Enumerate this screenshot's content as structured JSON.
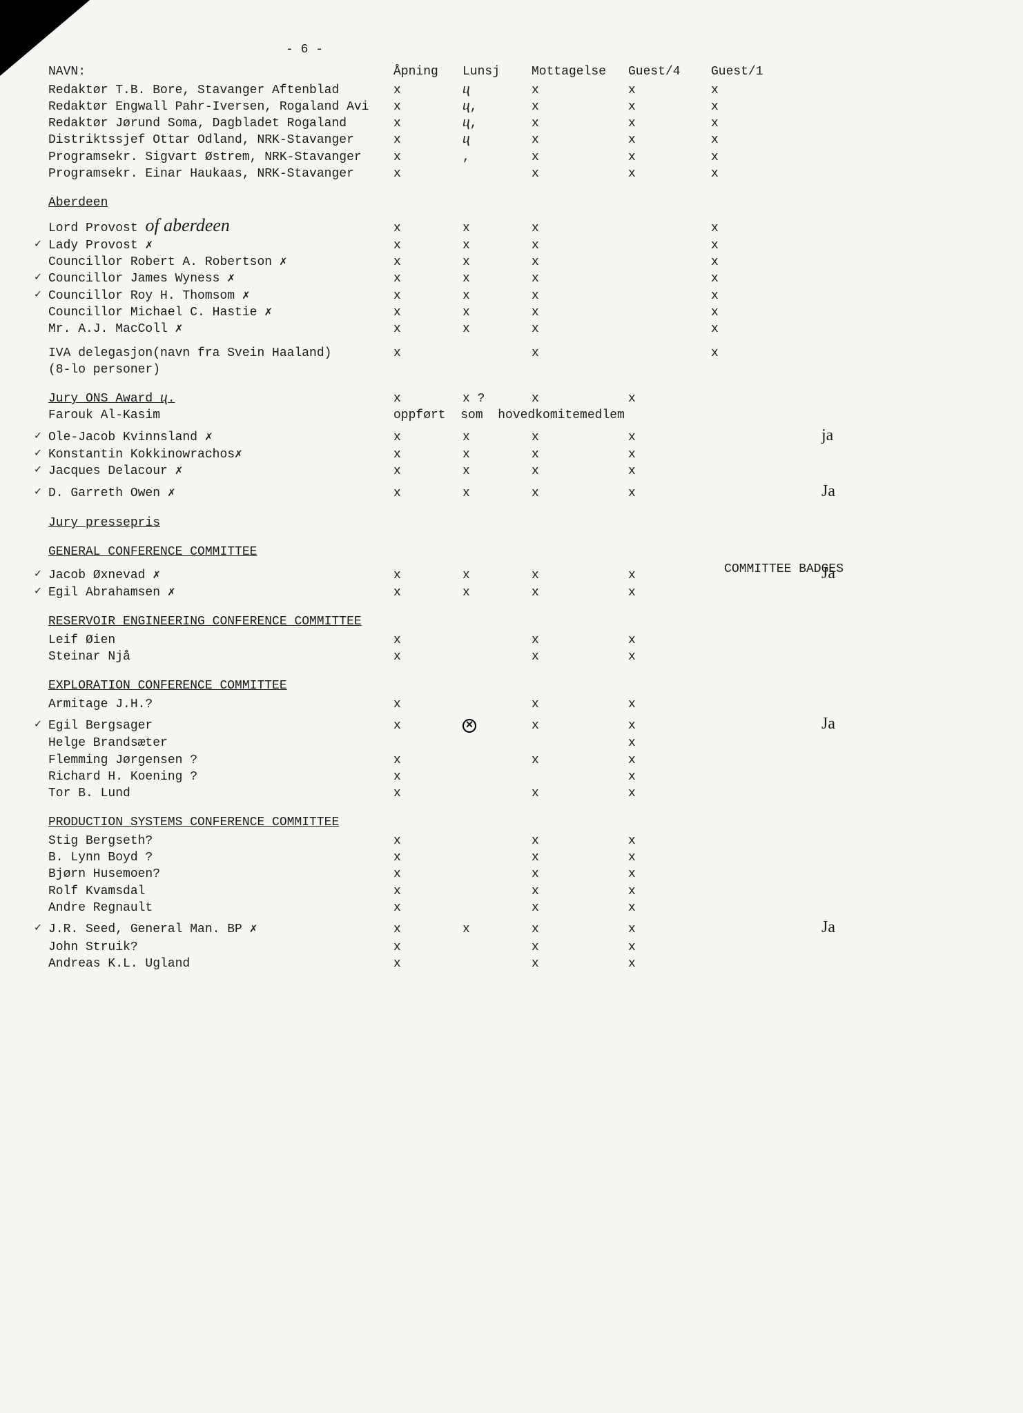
{
  "page_number": "- 6 -",
  "columns": {
    "name_label": "NAVN:",
    "c1": "Åpning",
    "c2": "Lunsj",
    "c3": "Mottagelse",
    "c4": "Guest/4",
    "c5": "Guest/1"
  },
  "top_rows": [
    {
      "name": "Redaktør T.B. Bore, Stavanger Aftenblad",
      "c1": "x",
      "c2": "ⴗ",
      "c3": "x",
      "c4": "x",
      "c5": "x"
    },
    {
      "name": "Redaktør Engwall Pahr-Iversen, Rogaland Avi",
      "c1": "x",
      "c2": "ⴗ,",
      "c3": "x",
      "c4": "x",
      "c5": "x"
    },
    {
      "name": "Redaktør Jørund Soma, Dagbladet Rogaland",
      "c1": "x",
      "c2": "ⴗ,",
      "c3": "x",
      "c4": "x",
      "c5": "x"
    },
    {
      "name": "Distriktssjef Ottar Odland, NRK-Stavanger",
      "c1": "x",
      "c2": "ⴗ",
      "c3": "x",
      "c4": "x",
      "c5": "x"
    },
    {
      "name": "Programsekr. Sigvart Østrem, NRK-Stavanger",
      "c1": "x",
      "c2": ",",
      "c3": "x",
      "c4": "x",
      "c5": "x"
    },
    {
      "name": "Programsekr. Einar Haukaas, NRK-Stavanger",
      "c1": "x",
      "c2": "",
      "c3": "x",
      "c4": "x",
      "c5": "x"
    }
  ],
  "aberdeen": {
    "title": "Aberdeen",
    "handwritten": "of aberdeen",
    "rows": [
      {
        "name": "Lord Provost",
        "hw": true,
        "c1": "x",
        "c2": "x",
        "c3": "x",
        "c5": "x"
      },
      {
        "name": "Lady Provost ✗",
        "check": true,
        "c1": "x",
        "c2": "x",
        "c3": "x",
        "c5": "x"
      },
      {
        "name": "Councillor Robert A. Robertson ✗",
        "c1": "x",
        "c2": "x",
        "c3": "x",
        "c5": "x"
      },
      {
        "name": "Councillor James Wyness ✗",
        "check": true,
        "c1": "x",
        "c2": "x",
        "c3": "x",
        "c5": "x"
      },
      {
        "name": "Councillor Roy H. Thomsom ✗",
        "check": true,
        "c1": "x",
        "c2": "x",
        "c3": "x",
        "c5": "x"
      },
      {
        "name": "Councillor Michael C. Hastie ✗",
        "c1": "x",
        "c2": "x",
        "c3": "x",
        "c5": "x"
      },
      {
        "name": "Mr. A.J. MacColl ✗",
        "c1": "x",
        "c2": "x",
        "c3": "x",
        "c5": "x"
      }
    ],
    "iva_line1": "IVA delegasjon(navn fra Svein Haaland)",
    "iva_line2": "(8-lo personer)",
    "iva": {
      "c1": "x",
      "c3": "x",
      "c5": "x"
    }
  },
  "jury_award": {
    "title": "Jury ONS Award ⴗ.",
    "title_row": {
      "c1": "x",
      "c2": "x ?",
      "c3": "x",
      "c4": "x"
    },
    "farouk": "Farouk Al-Kasim",
    "farouk_note": "oppført  som  hovedkomitemedlem",
    "rows": [
      {
        "name": "Ole-Jacob Kvinnsland ✗",
        "check": true,
        "c1": "x",
        "c2": "x",
        "c3": "x",
        "c4": "x",
        "ann": "ja"
      },
      {
        "name": "Konstantin Kokkinowrachos✗",
        "check": true,
        "c1": "x",
        "c2": "x",
        "c3": "x",
        "c4": "x"
      },
      {
        "name": "Jacques Delacour ✗",
        "check": true,
        "c1": "x",
        "c2": "x",
        "c3": "x",
        "c4": "x"
      },
      {
        "name": "D. Garreth Owen ✗",
        "check": true,
        "c1": "x",
        "c2": "x",
        "c3": "x",
        "c4": "x",
        "ann": "Ja"
      }
    ]
  },
  "jury_press": {
    "title": "Jury pressepris"
  },
  "gcc": {
    "title": "GENERAL CONFERENCE COMMITTEE",
    "badges": "COMMITTEE BADGES",
    "rows": [
      {
        "name": "Jacob Øxnevad ✗",
        "check": true,
        "c1": "x",
        "c2": "x",
        "c3": "x",
        "c4": "x",
        "ann": "Ja"
      },
      {
        "name": "Egil Abrahamsen ✗",
        "check": true,
        "c1": "x",
        "c2": "x",
        "c3": "x",
        "c4": "x"
      }
    ]
  },
  "recc": {
    "title": "RESERVOIR ENGINEERING CONFERENCE COMMITTEE",
    "rows": [
      {
        "name": "Leif Øien",
        "c1": "x",
        "c3": "x",
        "c4": "x"
      },
      {
        "name": "Steinar Njå",
        "c1": "x",
        "c3": "x",
        "c4": "x"
      }
    ]
  },
  "ecc": {
    "title": "EXPLORATION CONFERENCE COMMITTEE",
    "rows": [
      {
        "name": "Armitage J.H.?",
        "c1": "x",
        "c3": "x",
        "c4": "x"
      },
      {
        "name": "Egil Bergsager",
        "check": true,
        "c1": "x",
        "c2": "⊗",
        "c3": "x",
        "c4": "x",
        "ann": "Ja",
        "circled": true
      },
      {
        "name": "Helge Brandsæter",
        "c4": "x"
      },
      {
        "name": "Flemming Jørgensen ?",
        "c1": "x",
        "c3": "x",
        "c4": "x"
      },
      {
        "name": "Richard H. Koening ?",
        "c1": "x",
        "c4": "x"
      },
      {
        "name": "Tor B. Lund",
        "c1": "x",
        "c3": "x",
        "c4": "x"
      }
    ]
  },
  "pscc": {
    "title": "PRODUCTION SYSTEMS CONFERENCE COMMITTEE",
    "rows": [
      {
        "name": "Stig Bergseth?",
        "c1": "x",
        "c3": "x",
        "c4": "x"
      },
      {
        "name": "B. Lynn Boyd ?",
        "c1": "x",
        "c3": "x",
        "c4": "x"
      },
      {
        "name": "Bjørn Husemoen?",
        "c1": "x",
        "c3": "x",
        "c4": "x"
      },
      {
        "name": "Rolf Kvamsdal",
        "c1": "x",
        "c3": "x",
        "c4": "x"
      },
      {
        "name": "Andre Regnault",
        "c1": "x",
        "c3": "x",
        "c4": "x"
      },
      {
        "name": "J.R. Seed, General Man. BP ✗",
        "check": true,
        "c1": "x",
        "c2": "x",
        "c3": "x",
        "c4": "x",
        "ann": "Ja"
      },
      {
        "name": "John Struik?",
        "c1": "x",
        "c3": "x",
        "c4": "x"
      },
      {
        "name": "Andreas K.L. Ugland",
        "c1": "x",
        "c3": "x",
        "c4": "x"
      }
    ]
  }
}
